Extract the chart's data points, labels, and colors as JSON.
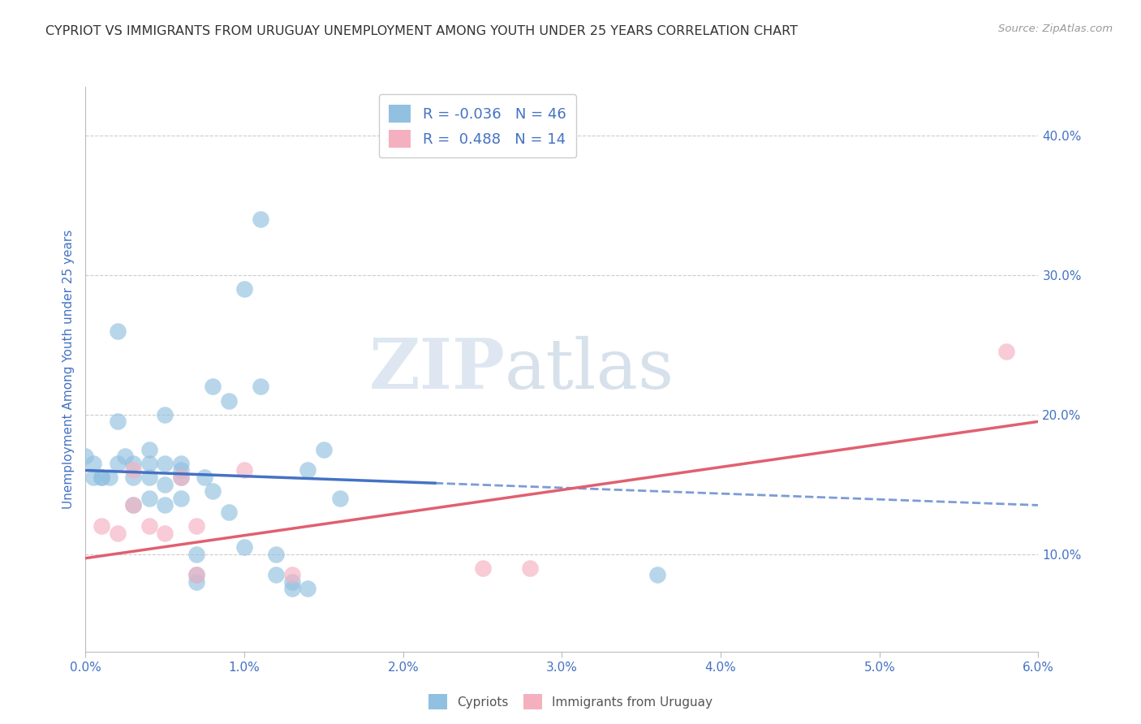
{
  "title": "CYPRIOT VS IMMIGRANTS FROM URUGUAY UNEMPLOYMENT AMONG YOUTH UNDER 25 YEARS CORRELATION CHART",
  "source": "Source: ZipAtlas.com",
  "ylabel": "Unemployment Among Youth under 25 years",
  "right_yticks": [
    0.1,
    0.2,
    0.3,
    0.4
  ],
  "right_yticklabels": [
    "10.0%",
    "20.0%",
    "30.0%",
    "40.0%"
  ],
  "xmin": 0.0,
  "xmax": 0.06,
  "ymin": 0.03,
  "ymax": 0.435,
  "blue_scatter_x": [
    0.0005,
    0.001,
    0.001,
    0.0015,
    0.002,
    0.002,
    0.0025,
    0.003,
    0.003,
    0.003,
    0.004,
    0.004,
    0.004,
    0.004,
    0.005,
    0.005,
    0.005,
    0.005,
    0.006,
    0.006,
    0.006,
    0.006,
    0.007,
    0.007,
    0.007,
    0.0075,
    0.008,
    0.008,
    0.009,
    0.009,
    0.01,
    0.01,
    0.011,
    0.011,
    0.012,
    0.012,
    0.013,
    0.013,
    0.014,
    0.014,
    0.015,
    0.016,
    0.002,
    0.0005,
    0.036,
    0.0
  ],
  "blue_scatter_y": [
    0.165,
    0.155,
    0.155,
    0.155,
    0.165,
    0.195,
    0.17,
    0.135,
    0.155,
    0.165,
    0.155,
    0.14,
    0.165,
    0.175,
    0.135,
    0.15,
    0.165,
    0.2,
    0.165,
    0.155,
    0.16,
    0.14,
    0.1,
    0.085,
    0.08,
    0.155,
    0.145,
    0.22,
    0.13,
    0.21,
    0.105,
    0.29,
    0.34,
    0.22,
    0.1,
    0.085,
    0.08,
    0.075,
    0.075,
    0.16,
    0.175,
    0.14,
    0.26,
    0.155,
    0.085,
    0.17
  ],
  "pink_scatter_x": [
    0.001,
    0.002,
    0.003,
    0.003,
    0.004,
    0.005,
    0.006,
    0.007,
    0.007,
    0.01,
    0.013,
    0.025,
    0.028,
    0.058
  ],
  "pink_scatter_y": [
    0.12,
    0.115,
    0.135,
    0.16,
    0.12,
    0.115,
    0.155,
    0.085,
    0.12,
    0.16,
    0.085,
    0.09,
    0.09,
    0.245
  ],
  "blue_trend_x": [
    0.0,
    0.06
  ],
  "blue_trend_y": [
    0.16,
    0.135
  ],
  "pink_trend_x": [
    0.0,
    0.06
  ],
  "pink_trend_y": [
    0.097,
    0.195
  ],
  "watermark_zip": "ZIP",
  "watermark_atlas": "atlas",
  "bg_color": "#ffffff",
  "blue_color": "#92c0e0",
  "pink_color": "#f5b0c0",
  "blue_line_color": "#4472c4",
  "pink_line_color": "#e06070",
  "axis_color": "#4472c4",
  "grid_color": "#cccccc",
  "xtick_labels": [
    "0.0%",
    "1.0%",
    "2.0%",
    "3.0%",
    "4.0%",
    "5.0%",
    "6.0%"
  ],
  "xtick_positions": [
    0.0,
    0.01,
    0.02,
    0.03,
    0.04,
    0.05,
    0.06
  ]
}
